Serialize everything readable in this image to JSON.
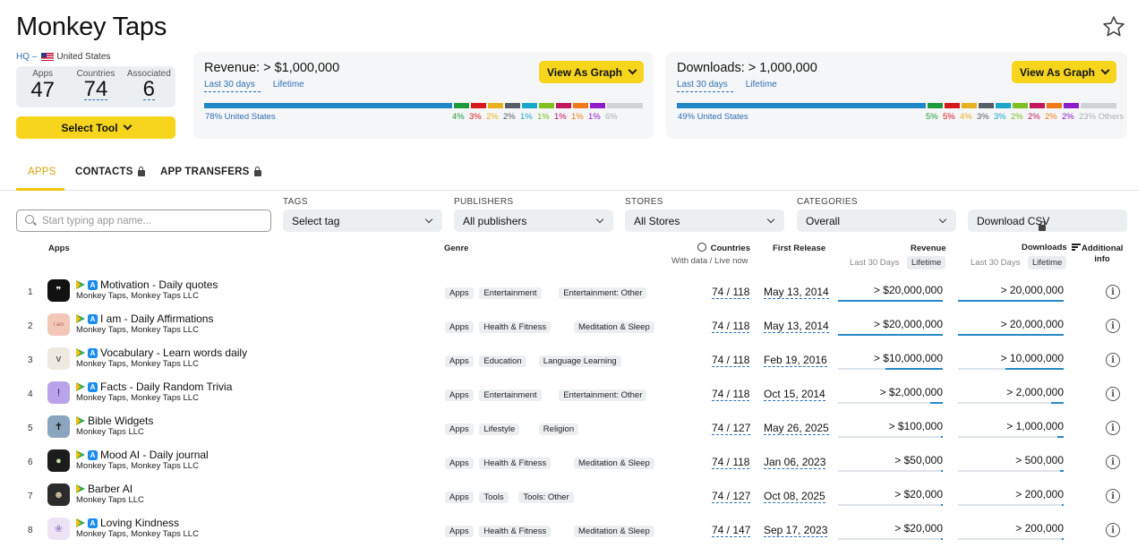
{
  "app": {
    "title": "Monkey Taps",
    "hq_label": "HQ –",
    "hq_country": "United States"
  },
  "stats": [
    {
      "label": "Apps",
      "value": "47"
    },
    {
      "label": "Countries",
      "value": "74"
    },
    {
      "label": "Associated",
      "value": "6"
    }
  ],
  "select_tool_label": "Select Tool",
  "revenue_panel": {
    "title": "Revenue: > $1,000,000",
    "tab_active": "Last 30 days",
    "tab_other": "Lifetime",
    "button": "View As Graph",
    "main_label": "78% United States",
    "main_value": 78,
    "segments": [
      {
        "pct": "4%",
        "color": "#1e9a3e"
      },
      {
        "pct": "3%",
        "color": "#d7191c"
      },
      {
        "pct": "2%",
        "color": "#e8b21f"
      },
      {
        "pct": "2%",
        "color": "#555d66"
      },
      {
        "pct": "1%",
        "color": "#1aa7c9"
      },
      {
        "pct": "1%",
        "color": "#7ec022"
      },
      {
        "pct": "1%",
        "color": "#c2185b"
      },
      {
        "pct": "1%",
        "color": "#f07a18"
      },
      {
        "pct": "1%",
        "color": "#8e1cc9"
      },
      {
        "pct": "6%",
        "color": "#cfd3d8"
      }
    ]
  },
  "downloads_panel": {
    "title": "Downloads: > 1,000,000",
    "tab_active": "Last 30 days",
    "tab_other": "Lifetime",
    "button": "View As Graph",
    "main_label": "49% United States",
    "main_value": 49,
    "segments": [
      {
        "pct": "5%",
        "color": "#1e9a3e"
      },
      {
        "pct": "5%",
        "color": "#d7191c"
      },
      {
        "pct": "4%",
        "color": "#e8b21f"
      },
      {
        "pct": "3%",
        "color": "#555d66"
      },
      {
        "pct": "3%",
        "color": "#1aa7c9"
      },
      {
        "pct": "2%",
        "color": "#7ec022"
      },
      {
        "pct": "2%",
        "color": "#c2185b"
      },
      {
        "pct": "2%",
        "color": "#f07a18"
      },
      {
        "pct": "2%",
        "color": "#8e1cc9"
      },
      {
        "pct": "23% Others",
        "color": "#cfd3d8"
      }
    ]
  },
  "tabs": [
    {
      "label": "APPS",
      "locked": false,
      "active": true
    },
    {
      "label": "CONTACTS",
      "locked": true,
      "active": false
    },
    {
      "label": "APP TRANSFERS",
      "locked": true,
      "active": false
    }
  ],
  "filters": {
    "search_placeholder": "Start typing app name...",
    "tags": {
      "label": "TAGS",
      "value": "Select tag"
    },
    "publishers": {
      "label": "PUBLISHERS",
      "value": "All publishers"
    },
    "stores": {
      "label": "STORES",
      "value": "All Stores"
    },
    "categories": {
      "label": "CATEGORIES",
      "value": "Overall"
    },
    "download_csv": "Download CSV"
  },
  "columns": {
    "apps": "Apps",
    "genre": "Genre",
    "countries": "Countries",
    "countries_sub": "With data / Live now",
    "first_release": "First Release",
    "revenue": "Revenue",
    "downloads": "Downloads",
    "additional_1": "Additional",
    "additional_2": "info",
    "last30": "Last 30 Days",
    "lifetime": "Lifetime"
  },
  "rows": [
    {
      "rank": "1",
      "name": "Motivation - Daily quotes",
      "publisher": "Monkey Taps, Monkey Taps LLC",
      "ios": true,
      "icon_bg": "#111111",
      "icon_fg": "#ffffff",
      "icon_glyph": "❞",
      "genres": [
        "Apps",
        "Entertainment",
        "Entertainment: Other"
      ],
      "countries": "74 / 118",
      "release": "May 13, 2014",
      "revenue": "> $20,000,000",
      "downloads": "> 20,000,000",
      "rev_fill": 1.0,
      "dl_fill": 1.0
    },
    {
      "rank": "2",
      "name": "I am - Daily Affirmations",
      "publisher": "Monkey Taps, Monkey Taps LLC",
      "ios": true,
      "icon_bg": "#f2c7b8",
      "icon_fg": "#b5694f",
      "icon_glyph": "i am",
      "genres": [
        "Apps",
        "Health & Fitness",
        "Meditation & Sleep"
      ],
      "countries": "74 / 118",
      "release": "May 13, 2014",
      "revenue": "> $20,000,000",
      "downloads": "> 20,000,000",
      "rev_fill": 1.0,
      "dl_fill": 1.0
    },
    {
      "rank": "3",
      "name": "Vocabulary - Learn words daily",
      "publisher": "Monkey Taps, Monkey Taps LLC",
      "ios": true,
      "icon_bg": "#efeadf",
      "icon_fg": "#333333",
      "icon_glyph": "v",
      "genres": [
        "Apps",
        "Education",
        "Language Learning"
      ],
      "countries": "74 / 118",
      "release": "Feb 19, 2016",
      "revenue": "> $10,000,000",
      "downloads": "> 10,000,000",
      "rev_fill": 0.55,
      "dl_fill": 0.55
    },
    {
      "rank": "4",
      "name": "Facts - Daily Random Trivia",
      "publisher": "Monkey Taps, Monkey Taps LLC",
      "ios": true,
      "icon_bg": "#b9a3ea",
      "icon_fg": "#222222",
      "icon_glyph": "!",
      "genres": [
        "Apps",
        "Entertainment",
        "Entertainment: Other"
      ],
      "countries": "74 / 118",
      "release": "Oct 15, 2014",
      "revenue": "> $2,000,000",
      "downloads": "> 2,000,000",
      "rev_fill": 0.12,
      "dl_fill": 0.12
    },
    {
      "rank": "5",
      "name": "Bible Widgets",
      "publisher": "Monkey Taps LLC",
      "ios": false,
      "icon_bg": "#8aa5bd",
      "icon_fg": "#111111",
      "icon_glyph": "✝",
      "genres": [
        "Apps",
        "Lifestyle",
        "Religion"
      ],
      "countries": "74 / 127",
      "release": "May 26, 2025",
      "revenue": "> $100,000",
      "downloads": "> 1,000,000",
      "rev_fill": 0.02,
      "dl_fill": 0.06
    },
    {
      "rank": "6",
      "name": "Mood AI - Daily journal",
      "publisher": "Monkey Taps, Monkey Taps LLC",
      "ios": true,
      "icon_bg": "#1c1c1c",
      "icon_fg": "#c7e6a5",
      "icon_glyph": "●",
      "genres": [
        "Apps",
        "Health & Fitness",
        "Meditation & Sleep"
      ],
      "countries": "74 / 118",
      "release": "Jan 06, 2023",
      "revenue": "> $50,000",
      "downloads": "> 500,000",
      "rev_fill": 0.01,
      "dl_fill": 0.03
    },
    {
      "rank": "7",
      "name": "Barber AI",
      "publisher": "Monkey Taps LLC",
      "ios": false,
      "icon_bg": "#2b2b2b",
      "icon_fg": "#d9c3a8",
      "icon_glyph": "☻",
      "genres": [
        "Apps",
        "Tools",
        "Tools: Other"
      ],
      "countries": "74 / 127",
      "release": "Oct 08, 2025",
      "revenue": "> $20,000",
      "downloads": "> 200,000",
      "rev_fill": 0.005,
      "dl_fill": 0.012
    },
    {
      "rank": "8",
      "name": "Loving Kindness",
      "publisher": "Monkey Taps, Monkey Taps LLC",
      "ios": true,
      "icon_bg": "#ece4f5",
      "icon_fg": "#a58acc",
      "icon_glyph": "❀",
      "genres": [
        "Apps",
        "Health & Fitness",
        "Meditation & Sleep"
      ],
      "countries": "74 / 147",
      "release": "Sep 17, 2023",
      "revenue": "> $20,000",
      "downloads": "> 200,000",
      "rev_fill": 0.005,
      "dl_fill": 0.012
    }
  ]
}
